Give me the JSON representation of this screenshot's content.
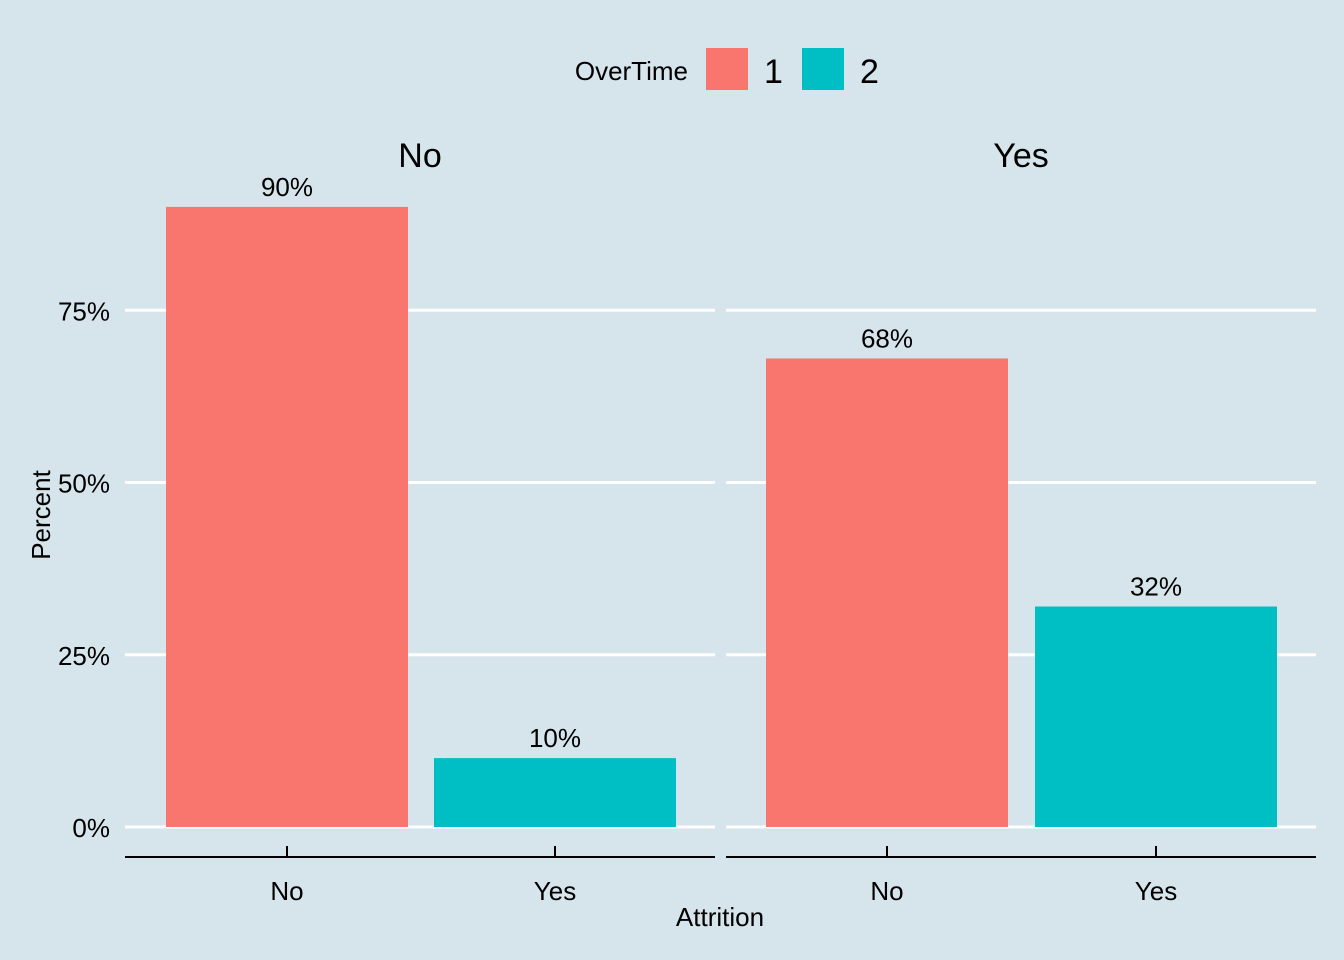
{
  "chart_data": {
    "type": "bar",
    "facet_variable": "Attrition",
    "xlabel": "Attrition",
    "ylabel": "Percent",
    "ylim": [
      0,
      100
    ],
    "y_ticks": [
      {
        "value": 0,
        "label": "0%"
      },
      {
        "value": 25,
        "label": "25%"
      },
      {
        "value": 50,
        "label": "50%"
      },
      {
        "value": 75,
        "label": "75%"
      }
    ],
    "legend": {
      "title": "OverTime",
      "position": "top",
      "entries": [
        {
          "label": "1",
          "color": "#f8766d"
        },
        {
          "label": "2",
          "color": "#00bfc4"
        }
      ]
    },
    "facets": [
      {
        "title": "No",
        "categories": [
          "No",
          "Yes"
        ],
        "bars": [
          {
            "category": "No",
            "series": "1",
            "value": 90,
            "label": "90%"
          },
          {
            "category": "Yes",
            "series": "2",
            "value": 10,
            "label": "10%"
          }
        ]
      },
      {
        "title": "Yes",
        "categories": [
          "No",
          "Yes"
        ],
        "bars": [
          {
            "category": "No",
            "series": "1",
            "value": 68,
            "label": "68%"
          },
          {
            "category": "Yes",
            "series": "2",
            "value": 32,
            "label": "32%"
          }
        ]
      }
    ],
    "colors": {
      "background": "#d6e4eb",
      "grid": "#ffffff",
      "axis": "#000000"
    }
  }
}
